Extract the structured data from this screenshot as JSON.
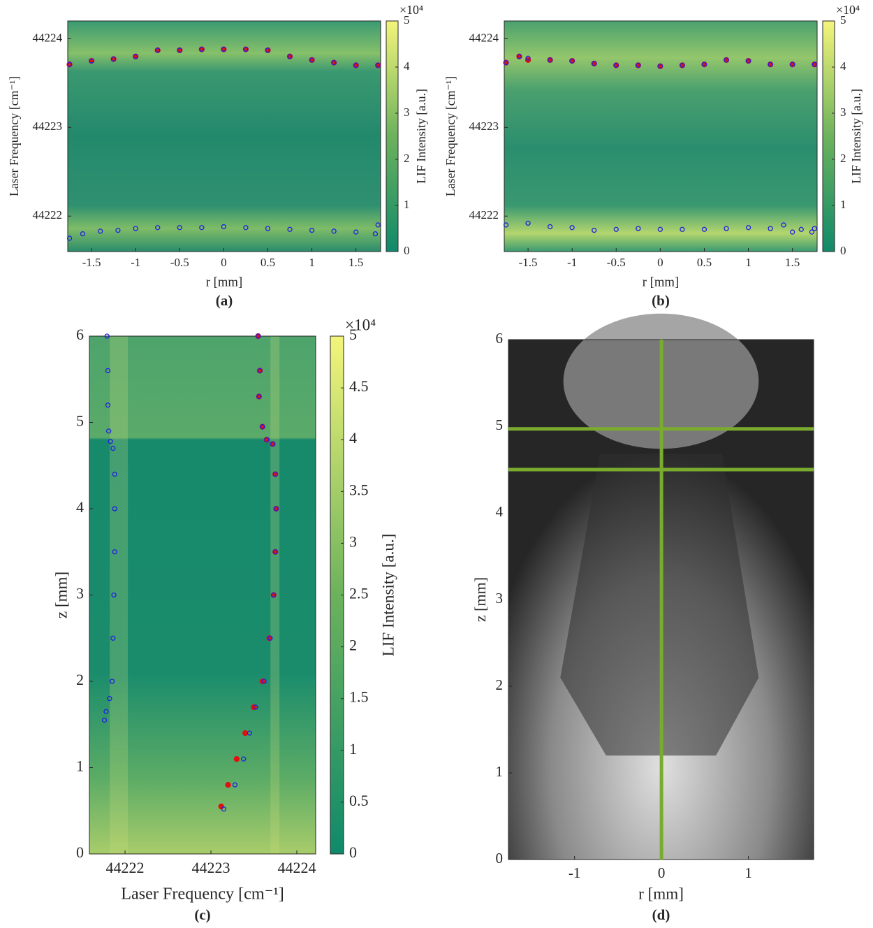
{
  "chart_data": [
    {
      "type": "heatmap",
      "panel_label": "(a)",
      "xlabel": "r [mm]",
      "ylabel": "Laser Frequency [cm⁻¹]",
      "xlim": [
        -1.77,
        1.78
      ],
      "ylim": [
        44221.6,
        44224.2
      ],
      "xticks": [
        -1.5,
        -1,
        -0.5,
        0,
        0.5,
        1,
        1.5
      ],
      "yticks": [
        44222,
        44223,
        44224
      ],
      "colorbar": {
        "label": "LIF Intensity [a.u.]",
        "multiplier": "×10⁴",
        "clim": [
          0,
          5
        ],
        "ticks": [
          0,
          1,
          2,
          3,
          4,
          5
        ]
      },
      "series": [
        {
          "color": "#e01010",
          "marker": "filled",
          "x": [
            -1.75,
            -1.5,
            -1.25,
            -1,
            -0.75,
            -0.5,
            -0.25,
            0,
            0.25,
            0.5,
            0.75,
            1,
            1.25,
            1.5,
            1.75
          ],
          "values": [
            44223.71,
            44223.75,
            44223.77,
            44223.8,
            44223.87,
            44223.87,
            44223.88,
            44223.88,
            44223.88,
            44223.87,
            44223.8,
            44223.76,
            44223.73,
            44223.7,
            44223.7
          ]
        },
        {
          "color": "#2020e0",
          "marker": "open",
          "x": [
            -1.75,
            -1.5,
            -1.25,
            -1,
            -0.75,
            -0.5,
            -0.25,
            0,
            0.25,
            0.5,
            0.75,
            1,
            1.25,
            1.5,
            1.75
          ],
          "values": [
            44223.71,
            44223.75,
            44223.77,
            44223.8,
            44223.87,
            44223.87,
            44223.88,
            44223.88,
            44223.88,
            44223.87,
            44223.8,
            44223.76,
            44223.73,
            44223.7,
            44223.7
          ]
        },
        {
          "color": "#2020e0",
          "marker": "open",
          "x": [
            -1.75,
            -1.6,
            -1.4,
            -1.2,
            -1,
            -0.75,
            -0.5,
            -0.25,
            0,
            0.25,
            0.5,
            0.75,
            1,
            1.25,
            1.5,
            1.72,
            1.75
          ],
          "values": [
            44221.75,
            44221.8,
            44221.83,
            44221.84,
            44221.86,
            44221.87,
            44221.87,
            44221.87,
            44221.88,
            44221.87,
            44221.86,
            44221.85,
            44221.84,
            44221.83,
            44221.82,
            44221.8,
            44221.9
          ]
        }
      ]
    },
    {
      "type": "heatmap",
      "panel_label": "(b)",
      "xlabel": "r [mm]",
      "ylabel": "Laser Frequency [cm⁻¹]",
      "xlim": [
        -1.77,
        1.78
      ],
      "ylim": [
        44221.6,
        44224.2
      ],
      "xticks": [
        -1.5,
        -1,
        -0.5,
        0,
        0.5,
        1,
        1.5
      ],
      "yticks": [
        44222,
        44223,
        44224
      ],
      "colorbar": {
        "label": "LIF Intensity [a.u.]",
        "multiplier": "×10⁴",
        "clim": [
          0,
          5
        ],
        "ticks": [
          0,
          1,
          2,
          3,
          4,
          5
        ]
      },
      "series": [
        {
          "color": "#e01010",
          "marker": "filled",
          "x": [
            -1.75,
            -1.6,
            -1.5,
            -1.25,
            -1,
            -0.75,
            -0.5,
            -0.25,
            0,
            0.25,
            0.5,
            0.75,
            1,
            1.25,
            1.5,
            1.75
          ],
          "values": [
            44223.73,
            44223.8,
            44223.76,
            44223.76,
            44223.75,
            44223.72,
            44223.7,
            44223.7,
            44223.69,
            44223.7,
            44223.71,
            44223.76,
            44223.75,
            44223.71,
            44223.71,
            44223.71
          ]
        },
        {
          "color": "#2020e0",
          "marker": "open",
          "x": [
            -1.75,
            -1.6,
            -1.5,
            -1.25,
            -1,
            -0.75,
            -0.5,
            -0.25,
            0,
            0.25,
            0.5,
            0.75,
            1,
            1.25,
            1.5,
            1.75
          ],
          "values": [
            44223.73,
            44223.8,
            44223.78,
            44223.76,
            44223.75,
            44223.72,
            44223.7,
            44223.7,
            44223.69,
            44223.7,
            44223.71,
            44223.76,
            44223.75,
            44223.71,
            44223.71,
            44223.71
          ]
        },
        {
          "color": "#2020e0",
          "marker": "open",
          "x": [
            -1.75,
            -1.5,
            -1.25,
            -1,
            -0.75,
            -0.5,
            -0.25,
            0,
            0.25,
            0.5,
            0.75,
            1,
            1.25,
            1.4,
            1.5,
            1.6,
            1.72,
            1.75
          ],
          "values": [
            44221.9,
            44221.92,
            44221.88,
            44221.87,
            44221.84,
            44221.85,
            44221.86,
            44221.85,
            44221.85,
            44221.85,
            44221.86,
            44221.87,
            44221.86,
            44221.9,
            44221.82,
            44221.85,
            44221.82,
            44221.86
          ]
        }
      ]
    },
    {
      "type": "heatmap",
      "panel_label": "(c)",
      "xlabel": "Laser Frequency [cm⁻¹]",
      "ylabel": "z [mm]",
      "xlim": [
        44221.585,
        44224.22
      ],
      "ylim": [
        0,
        6
      ],
      "xticks": [
        44222,
        44223,
        44224
      ],
      "yticks": [
        0,
        1,
        2,
        3,
        4,
        5,
        6
      ],
      "colorbar": {
        "label": "LIF Intensity [a.u.]",
        "multiplier": "×10⁴",
        "clim": [
          0,
          5
        ],
        "ticks": [
          0,
          0.5,
          1,
          1.5,
          2,
          2.5,
          3,
          3.5,
          4,
          4.5,
          5
        ]
      },
      "series": [
        {
          "color": "#2020e0",
          "marker": "open",
          "x": [
            44221.79,
            44221.8,
            44221.8,
            44221.81,
            44221.83,
            44221.86,
            44221.88,
            44221.88,
            44221.88,
            44221.87,
            44221.86,
            44221.85,
            44221.82,
            44221.78,
            44221.76
          ],
          "values": [
            6,
            5.6,
            5.2,
            4.9,
            4.78,
            4.7,
            4.4,
            4,
            3.5,
            3,
            2.5,
            2,
            1.8,
            1.65,
            1.55
          ]
        },
        {
          "color": "#e01010",
          "marker": "filled",
          "x": [
            44223.55,
            44223.57,
            44223.56,
            44223.6,
            44223.65,
            44223.72,
            44223.75,
            44223.76,
            44223.75,
            44223.73,
            44223.68,
            44223.6,
            44223.5,
            44223.4,
            44223.3,
            44223.2,
            44223.12
          ],
          "values": [
            6,
            5.6,
            5.3,
            4.95,
            4.8,
            4.75,
            4.4,
            4,
            3.5,
            3,
            2.5,
            2,
            1.7,
            1.4,
            1.1,
            0.8,
            0.55
          ]
        },
        {
          "color": "#2020e0",
          "marker": "open",
          "x": [
            44223.55,
            44223.57,
            44223.56,
            44223.6,
            44223.65,
            44223.72,
            44223.75,
            44223.76,
            44223.75,
            44223.73,
            44223.69,
            44223.62,
            44223.52,
            44223.45,
            44223.38,
            44223.28,
            44223.15
          ],
          "values": [
            6,
            5.6,
            5.3,
            4.95,
            4.8,
            4.75,
            4.4,
            4,
            3.5,
            3,
            2.5,
            2,
            1.7,
            1.4,
            1.1,
            0.8,
            0.52
          ]
        }
      ]
    },
    {
      "type": "image",
      "panel_label": "(d)",
      "xlabel": "r [mm]",
      "ylabel": "z [mm]",
      "xlim": [
        -1.76,
        1.75
      ],
      "ylim": [
        0,
        6
      ],
      "xticks": [
        -1,
        0,
        1
      ],
      "yticks": [
        0,
        1,
        2,
        3,
        4,
        5,
        6
      ],
      "guide_lines": {
        "color": "#7aab2e",
        "x": [
          0
        ],
        "y": [
          4.97,
          4.5
        ]
      }
    }
  ]
}
